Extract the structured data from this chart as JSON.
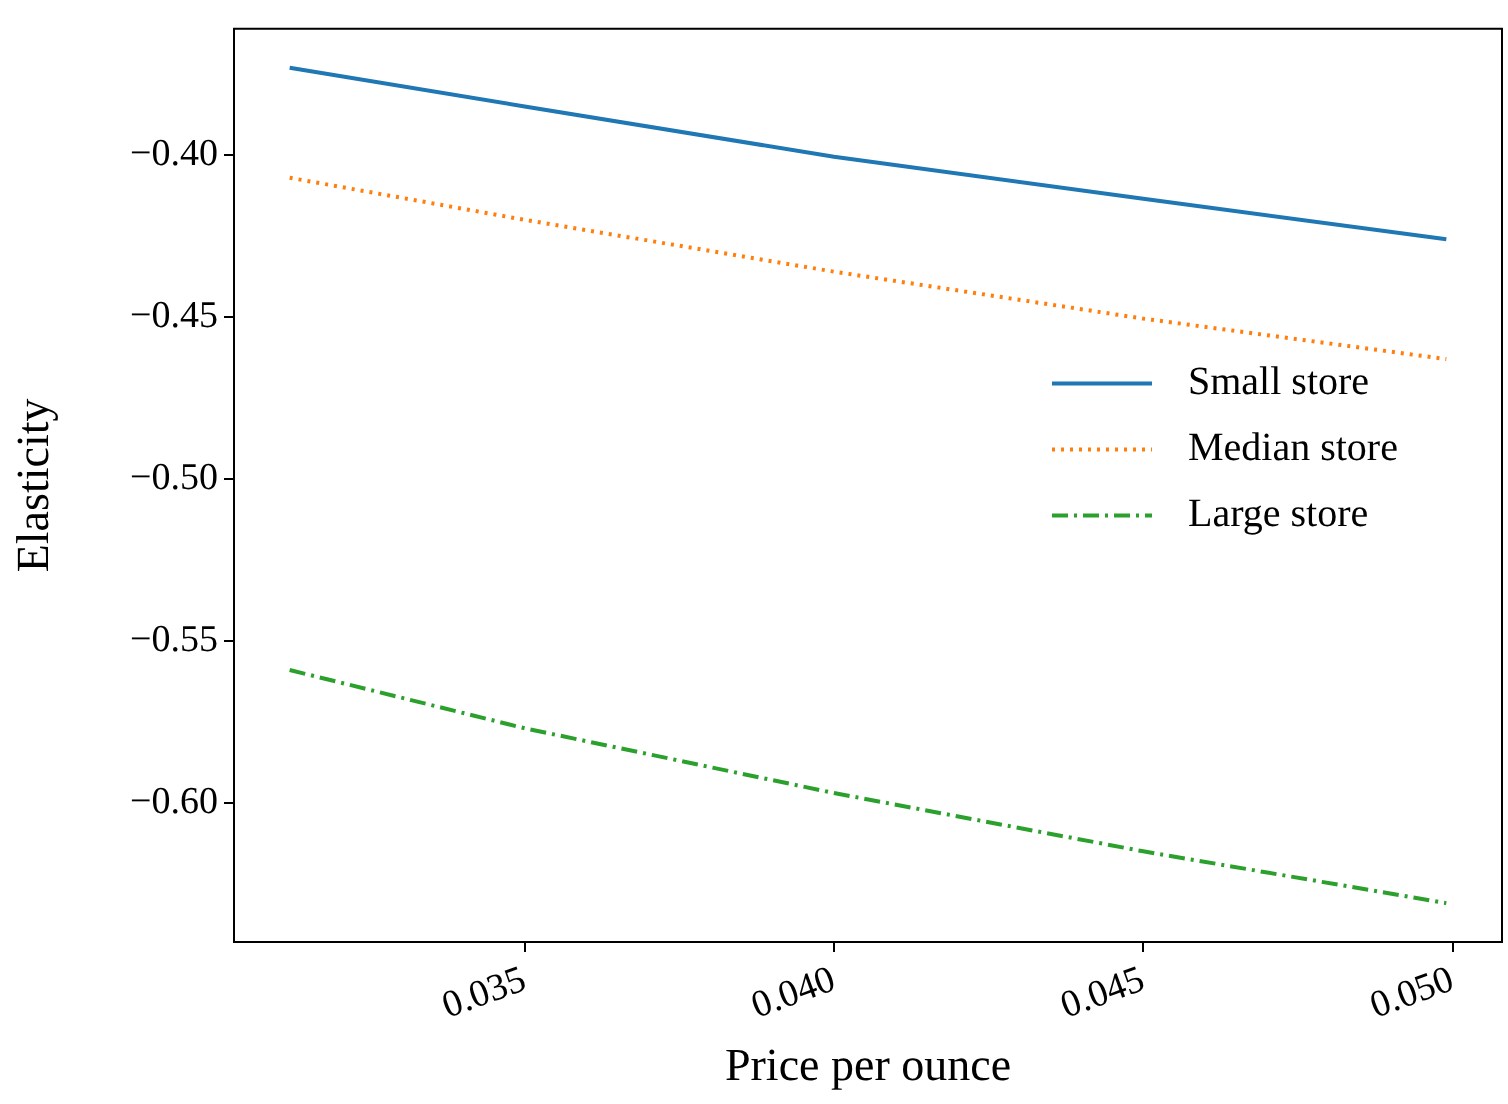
{
  "chart_data": {
    "type": "line",
    "xlabel": "Price per ounce",
    "ylabel": "Elasticity",
    "xlim": [
      0.0303,
      0.0508
    ],
    "ylim": [
      -0.643,
      -0.361
    ],
    "xticks": [
      {
        "value": 0.035,
        "label": "0.035"
      },
      {
        "value": 0.04,
        "label": "0.040"
      },
      {
        "value": 0.045,
        "label": "0.045"
      },
      {
        "value": 0.05,
        "label": "0.050"
      }
    ],
    "yticks": [
      {
        "value": -0.6,
        "label": "−0.60"
      },
      {
        "value": -0.55,
        "label": "−0.55"
      },
      {
        "value": -0.5,
        "label": "−0.50"
      },
      {
        "value": -0.45,
        "label": "−0.45"
      },
      {
        "value": -0.4,
        "label": "−0.40"
      }
    ],
    "x": [
      0.0312,
      0.035,
      0.04,
      0.045,
      0.0499
    ],
    "series": [
      {
        "name": "Small store",
        "color": "#1f77b4",
        "line_style": "solid",
        "values": [
          -0.373,
          -0.385,
          -0.4005,
          -0.4135,
          -0.426
        ]
      },
      {
        "name": "Median store",
        "color": "#ff7f0e",
        "line_style": "dotted",
        "values": [
          -0.407,
          -0.42,
          -0.436,
          -0.4505,
          -0.463
        ]
      },
      {
        "name": "Large store",
        "color": "#2ca02c",
        "line_style": "dashdot",
        "values": [
          -0.559,
          -0.577,
          -0.597,
          -0.615,
          -0.631
        ]
      }
    ],
    "grid": false,
    "legend": "right",
    "marker": "none"
  }
}
